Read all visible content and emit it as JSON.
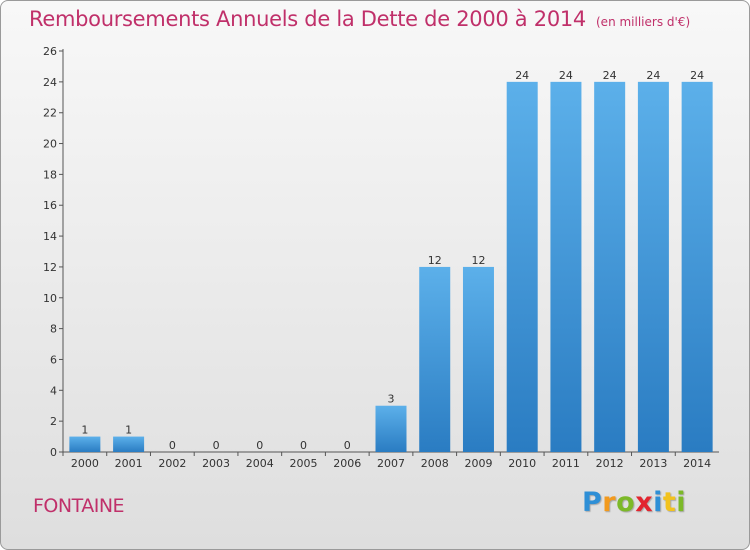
{
  "header": {
    "title": "Remboursements Annuels de la Dette de 2000 à 2014",
    "subtitle": "(en milliers d'€)"
  },
  "footer": {
    "commune": "FONTAINE",
    "logo_text": "Proxiti"
  },
  "colors": {
    "title": "#c0306a",
    "bar_light": "#5cb0ea",
    "bar_dark": "#2a7cc2"
  },
  "chart_data": {
    "type": "bar",
    "title": "Remboursements Annuels de la Dette de 2000 à 2014",
    "subtitle": "(en milliers d'€)",
    "xlabel": "",
    "ylabel": "",
    "categories": [
      "2000",
      "2001",
      "2002",
      "2003",
      "2004",
      "2005",
      "2006",
      "2007",
      "2008",
      "2009",
      "2010",
      "2011",
      "2012",
      "2013",
      "2014"
    ],
    "values": [
      1,
      1,
      0,
      0,
      0,
      0,
      0,
      3,
      12,
      12,
      24,
      24,
      24,
      24,
      24
    ],
    "ylim": [
      0,
      26
    ],
    "yticks": [
      0,
      2,
      4,
      6,
      8,
      10,
      12,
      14,
      16,
      18,
      20,
      22,
      24,
      26
    ],
    "grid": false,
    "legend": "none"
  }
}
